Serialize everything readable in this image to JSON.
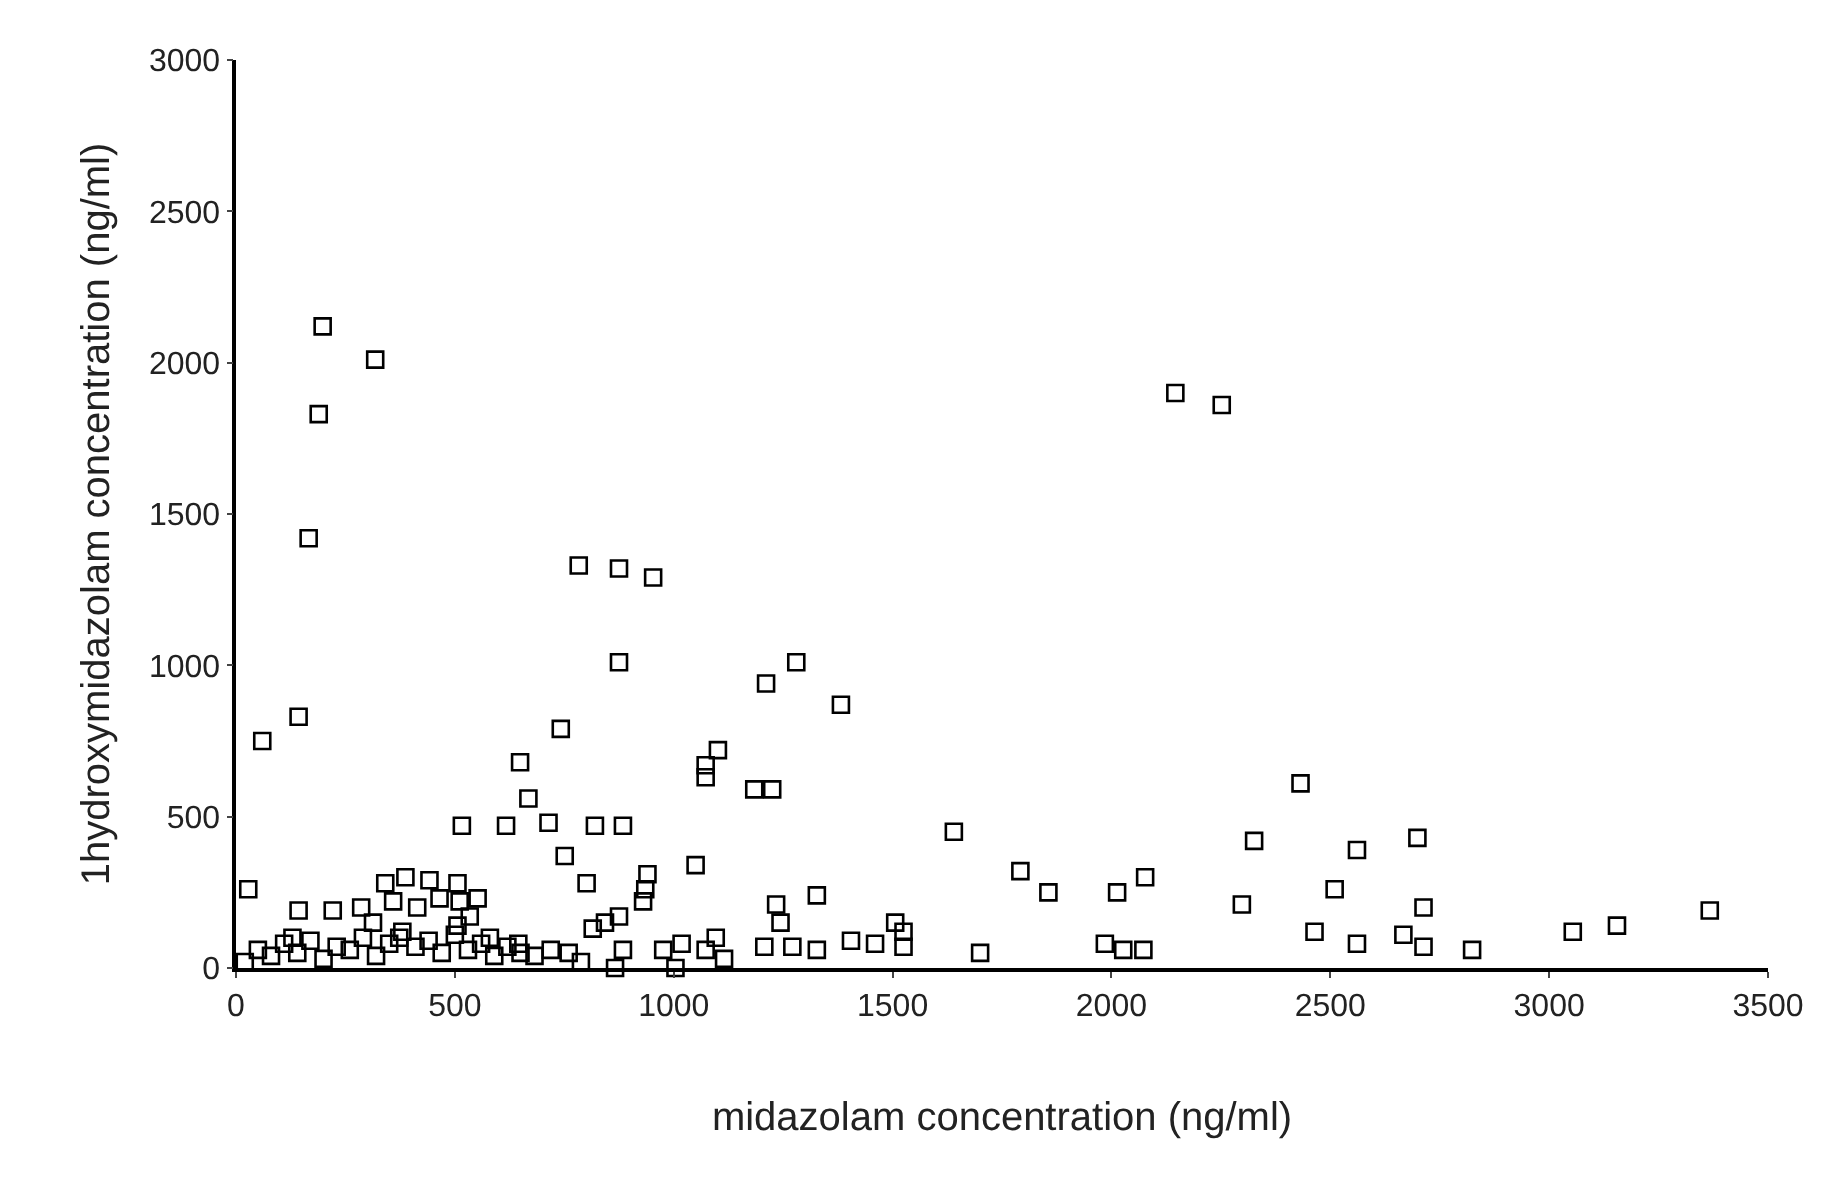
{
  "chart_data": {
    "type": "scatter",
    "xlabel": "midazolam concentration (ng/ml)",
    "ylabel": "1hydroxymidazolam concentration (ng/ml)",
    "xlim": [
      0,
      3500
    ],
    "ylim": [
      0,
      3000
    ],
    "xticks": [
      0,
      500,
      1000,
      1500,
      2000,
      2500,
      3000,
      3500
    ],
    "yticks": [
      0,
      500,
      1000,
      1500,
      2000,
      2500,
      3000
    ],
    "grid": false,
    "marker": "square",
    "series": [
      {
        "color": "#000000",
        "x": [
          198,
          318,
          189,
          166,
          143,
          60,
          28,
          783,
          875,
          953,
          875,
          1211,
          1280,
          742,
          649,
          668,
          516,
          617,
          714,
          820,
          884,
          751,
          801,
          1050,
          1101,
          1073,
          1073,
          1184,
          1225,
          1234,
          1244,
          1207,
          1271,
          940,
          935,
          930,
          875,
          843,
          815,
          884,
          866,
          976,
          1004,
          1018,
          1096,
          1115,
          1073,
          341,
          387,
          442,
          506,
          552,
          359,
          414,
          465,
          511,
          534,
          506,
          580,
          286,
          221,
          143,
          129,
          313,
          373,
          645,
          719,
          760,
          788,
          682,
          1382,
          1640,
          1327,
          1792,
          1856,
          2013,
          2077,
          1985,
          2027,
          2073,
          1700,
          1405,
          1460,
          1506,
          1525,
          1525,
          1327,
          2432,
          2326,
          2561,
          2510,
          2298,
          2464,
          2561,
          2146,
          2252,
          2699,
          2713,
          2667,
          2713,
          2824,
          3054,
          3155,
          3367,
          20,
          50,
          80,
          110,
          140,
          170,
          200,
          230,
          260,
          290,
          320,
          350,
          380,
          410,
          440,
          470,
          500,
          530,
          560,
          590,
          620,
          650
        ],
        "values": [
          2120,
          2010,
          1830,
          1420,
          830,
          750,
          260,
          1330,
          1320,
          1290,
          1010,
          940,
          1010,
          790,
          680,
          560,
          470,
          470,
          480,
          470,
          470,
          370,
          280,
          340,
          720,
          670,
          630,
          590,
          590,
          210,
          150,
          70,
          70,
          310,
          260,
          220,
          170,
          150,
          130,
          60,
          0,
          60,
          0,
          80,
          100,
          30,
          60,
          280,
          300,
          290,
          280,
          230,
          220,
          200,
          230,
          220,
          170,
          140,
          100,
          200,
          190,
          190,
          100,
          150,
          100,
          80,
          60,
          50,
          20,
          40,
          870,
          450,
          240,
          320,
          250,
          250,
          300,
          80,
          60,
          60,
          50,
          90,
          80,
          150,
          120,
          70,
          60,
          610,
          420,
          390,
          260,
          210,
          120,
          80,
          1900,
          1860,
          430,
          200,
          110,
          70,
          60,
          120,
          140,
          190,
          20,
          60,
          40,
          80,
          50,
          90,
          30,
          70,
          60,
          100,
          40,
          80,
          120,
          70,
          90,
          50,
          110,
          60,
          80,
          40,
          70,
          50
        ]
      }
    ]
  }
}
